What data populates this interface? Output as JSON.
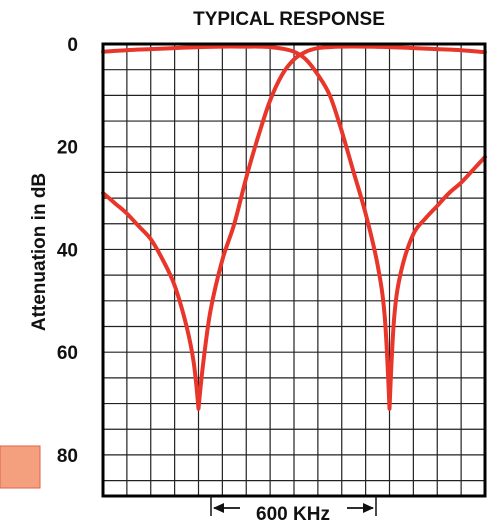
{
  "chart_data": {
    "type": "line",
    "title": "TYPICAL RESPONSE",
    "ylabel": "Attenuation in dB",
    "xlabel": "",
    "ylim": [
      0,
      88
    ],
    "y_inverted": true,
    "yticks": [
      "0",
      "20",
      "40",
      "60",
      "80"
    ],
    "xlim": [
      0,
      16
    ],
    "grid": true,
    "bandwidth_annotation": "600 KHz",
    "series": [
      {
        "x": [
          0,
          1,
          2,
          3,
          4,
          5,
          6,
          6.5,
          7,
          7.5,
          8,
          8.5,
          9,
          9.5,
          10,
          10.5,
          11,
          11.5,
          11.8,
          12,
          12.2,
          12.5,
          13,
          13.5,
          14,
          14.5,
          15,
          15.5,
          16
        ],
        "y": [
          1.5,
          1.2,
          1.0,
          0.8,
          0.6,
          0.5,
          0.5,
          0.5,
          0.6,
          0.9,
          1.5,
          3.0,
          6.0,
          10.0,
          17.0,
          25.0,
          33.0,
          43.0,
          53.0,
          71.0,
          53.0,
          44.0,
          37.0,
          34.0,
          31.5,
          29.0,
          27.0,
          24.5,
          22.0
        ],
        "color": "#e8362a"
      },
      {
        "x": [
          0,
          0.5,
          1,
          1.5,
          2,
          2.5,
          3,
          3.5,
          3.8,
          4,
          4.2,
          4.5,
          5,
          5.5,
          6,
          6.5,
          7,
          7.5,
          8,
          8.5,
          9,
          9.5,
          10,
          11,
          12,
          13,
          14,
          15,
          16
        ],
        "y": [
          29.0,
          31.0,
          33.0,
          35.5,
          38.0,
          42.0,
          47.0,
          55.0,
          62.0,
          71.0,
          62.0,
          52.0,
          42.0,
          35.0,
          26.0,
          18.0,
          11.0,
          6.0,
          3.0,
          1.5,
          0.8,
          0.6,
          0.5,
          0.5,
          0.6,
          0.8,
          1.0,
          1.2,
          1.6
        ],
        "color": "#e8362a"
      }
    ]
  },
  "accents": {
    "curve": "#e8362a",
    "swatch": "#f4a07f",
    "swatch_border": "#e0664a"
  }
}
